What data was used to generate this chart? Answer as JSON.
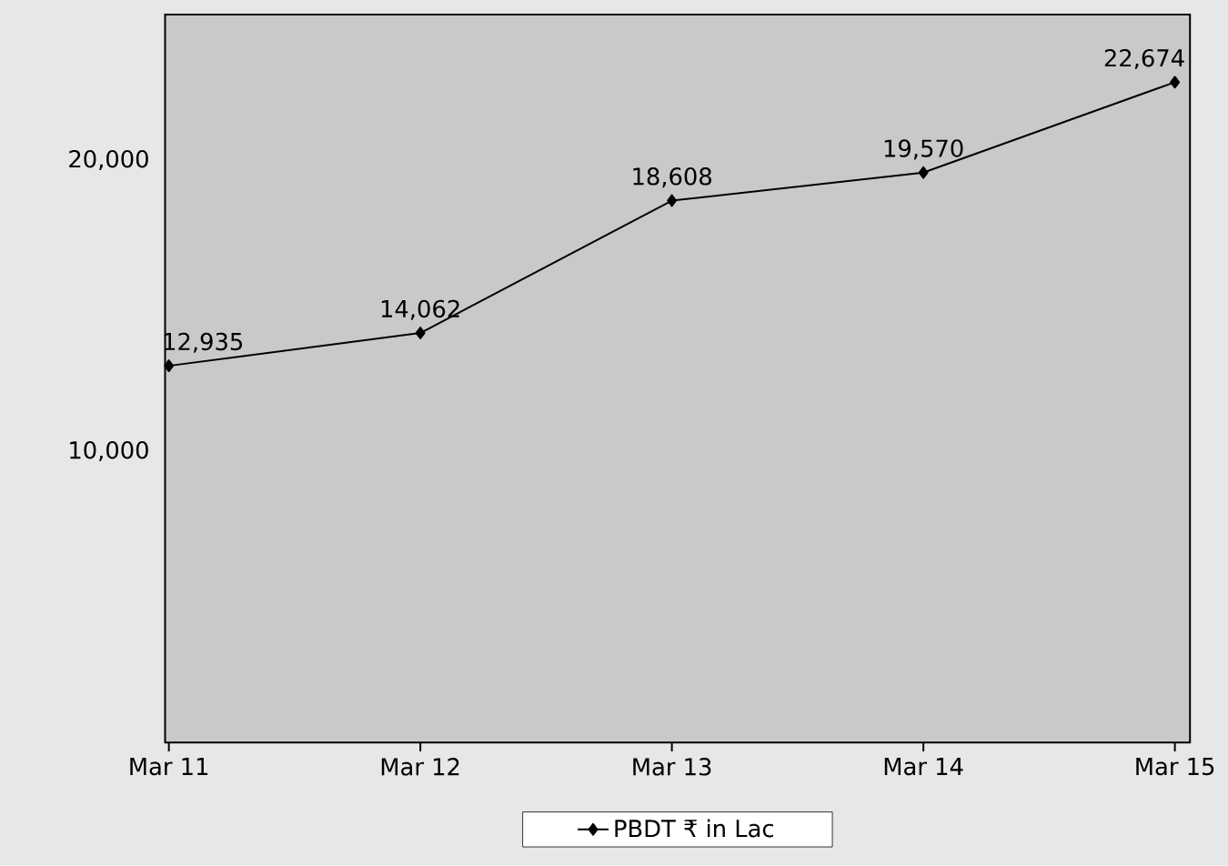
{
  "chart_data": {
    "type": "line",
    "categories": [
      "Mar 11",
      "Mar 12",
      "Mar 13",
      "Mar 14",
      "Mar 15"
    ],
    "series": [
      {
        "name": "PBDT ₹ in Lac",
        "color": "#000000",
        "values": [
          12935,
          14062,
          18608,
          19570,
          22674
        ],
        "value_labels": [
          "12,935",
          "14,062",
          "18,608",
          "19,570",
          "22,674"
        ]
      }
    ],
    "ylim": [
      0,
      25000
    ],
    "yticks": [
      {
        "value": 10000,
        "label": "10,000"
      },
      {
        "value": 20000,
        "label": "20,000"
      }
    ],
    "marker": "diamond",
    "line_style": "solid",
    "grid": false,
    "legend": "bottom"
  }
}
